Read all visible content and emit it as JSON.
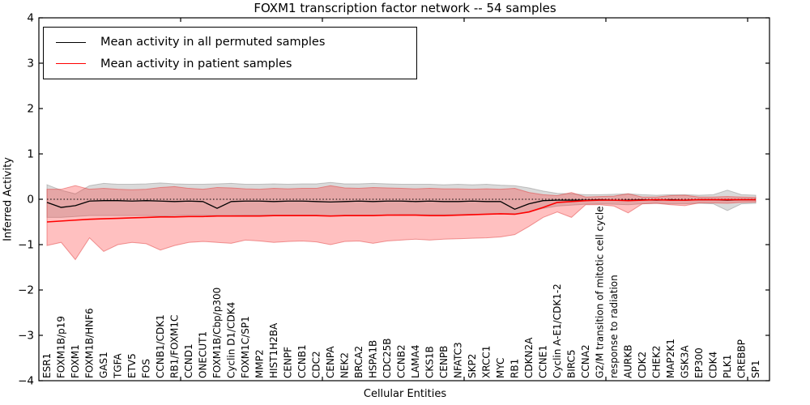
{
  "chart": {
    "title": "FOXM1 transcription factor network -- 54 samples",
    "xlabel": "Cellular Entities",
    "ylabel": "Inferred Activity",
    "y_ticks": [
      "4",
      "3",
      "2",
      "1",
      "0",
      "−1",
      "−2",
      "−3",
      "−4"
    ],
    "y_tick_values": [
      4,
      3,
      2,
      1,
      0,
      -1,
      -2,
      -3,
      -4
    ],
    "colors": {
      "permuted_line": "#000000",
      "patient_line": "#ff0000",
      "permuted_band_fill": "rgba(150,150,150,0.35)",
      "permuted_band_edge": "rgba(120,120,120,0.40)",
      "patient_band_fill": "rgba(255,45,45,0.30)",
      "patient_band_edge": "rgba(225,60,60,0.50)",
      "axis": "#000000"
    }
  },
  "legend": {
    "entries": [
      {
        "label": "Mean activity in all permuted samples",
        "color": "#000000"
      },
      {
        "label": "Mean activity in patient samples",
        "color": "#ff0000"
      }
    ]
  },
  "chart_data": {
    "type": "line",
    "title": "FOXM1 transcription factor network -- 54 samples",
    "xlabel": "Cellular Entities",
    "ylabel": "Inferred Activity",
    "ylim": [
      -4,
      4
    ],
    "grid": false,
    "legend_position": "upper left",
    "baseline": {
      "value": 0,
      "style": "dotted",
      "color": "#000000"
    },
    "categories": [
      "ESR1",
      "FOXM1B/p19",
      "FOXM1",
      "FOXM1B/HNF6",
      "GAS1",
      "TGFA",
      "ETV5",
      "FOS",
      "CCNB1/CDK1",
      "RB1/FOXM1C",
      "CCND1",
      "ONECUT1",
      "FOXM1B/Cbp/p300",
      "Cyclin D1/CDK4",
      "FOXM1C/SP1",
      "MMP2",
      "HIST1H2BA",
      "CENPF",
      "CCNB1",
      "CDC2",
      "CENPA",
      "NEK2",
      "BRCA2",
      "HSPA1B",
      "CDC25B",
      "CCNB2",
      "LAMA4",
      "CKS1B",
      "CENPB",
      "NFATC3",
      "SKP2",
      "XRCC1",
      "MYC",
      "RB1",
      "CDKN2A",
      "CCNE1",
      "Cyclin A-E1/CDK1-2",
      "BIRC5",
      "CCNA2",
      "G2/M transition of mitotic cell cycle",
      "response to radiation",
      "AURKB",
      "CDK2",
      "CHEK2",
      "MAP2K1",
      "GSK3A",
      "EP300",
      "CDK4",
      "PLK1",
      "CREBBP",
      "SP1"
    ],
    "series": [
      {
        "name": "Mean activity in all permuted samples",
        "color": "#000000",
        "values": [
          -0.07,
          -0.18,
          -0.14,
          -0.04,
          -0.03,
          -0.03,
          -0.04,
          -0.03,
          -0.04,
          -0.05,
          -0.04,
          -0.05,
          -0.2,
          -0.05,
          -0.04,
          -0.04,
          -0.05,
          -0.04,
          -0.04,
          -0.05,
          -0.06,
          -0.05,
          -0.04,
          -0.05,
          -0.04,
          -0.04,
          -0.05,
          -0.04,
          -0.05,
          -0.05,
          -0.04,
          -0.05,
          -0.05,
          -0.22,
          -0.1,
          -0.03,
          -0.02,
          -0.02,
          -0.02,
          -0.01,
          -0.02,
          -0.02,
          -0.01,
          -0.02,
          -0.01,
          -0.02,
          -0.01,
          -0.01,
          -0.02,
          -0.01,
          -0.01
        ]
      },
      {
        "name": "Mean activity in patient samples",
        "color": "#ff0000",
        "values": [
          -0.5,
          -0.48,
          -0.46,
          -0.44,
          -0.43,
          -0.42,
          -0.41,
          -0.4,
          -0.39,
          -0.39,
          -0.38,
          -0.38,
          -0.37,
          -0.37,
          -0.37,
          -0.37,
          -0.36,
          -0.36,
          -0.36,
          -0.36,
          -0.37,
          -0.36,
          -0.36,
          -0.36,
          -0.35,
          -0.35,
          -0.35,
          -0.36,
          -0.36,
          -0.35,
          -0.34,
          -0.33,
          -0.32,
          -0.33,
          -0.28,
          -0.18,
          -0.07,
          -0.05,
          -0.03,
          -0.02,
          -0.02,
          -0.03,
          -0.02,
          -0.01,
          -0.02,
          -0.02,
          -0.01,
          -0.01,
          -0.01,
          -0.01,
          -0.01
        ]
      }
    ],
    "bands": [
      {
        "name": "permuted-samples-range",
        "fill": "rgba(150,150,150,0.35)",
        "stroke": "rgba(120,120,120,0.40)",
        "upper": [
          0.32,
          0.2,
          0.12,
          0.3,
          0.35,
          0.33,
          0.33,
          0.34,
          0.36,
          0.34,
          0.33,
          0.33,
          0.34,
          0.35,
          0.33,
          0.33,
          0.34,
          0.33,
          0.34,
          0.34,
          0.37,
          0.34,
          0.34,
          0.35,
          0.34,
          0.33,
          0.33,
          0.33,
          0.32,
          0.33,
          0.32,
          0.33,
          0.31,
          0.3,
          0.25,
          0.18,
          0.13,
          0.12,
          0.1,
          0.1,
          0.11,
          0.12,
          0.1,
          0.09,
          0.1,
          0.1,
          0.09,
          0.1,
          0.2,
          0.1,
          0.09
        ],
        "lower": [
          -0.4,
          -0.4,
          -0.38,
          -0.36,
          -0.36,
          -0.36,
          -0.36,
          -0.36,
          -0.37,
          -0.36,
          -0.35,
          -0.35,
          -0.36,
          -0.36,
          -0.35,
          -0.35,
          -0.35,
          -0.35,
          -0.35,
          -0.35,
          -0.37,
          -0.35,
          -0.35,
          -0.35,
          -0.35,
          -0.34,
          -0.34,
          -0.34,
          -0.34,
          -0.34,
          -0.33,
          -0.33,
          -0.32,
          -0.32,
          -0.28,
          -0.2,
          -0.15,
          -0.13,
          -0.11,
          -0.1,
          -0.11,
          -0.12,
          -0.1,
          -0.09,
          -0.1,
          -0.1,
          -0.09,
          -0.1,
          -0.25,
          -0.1,
          -0.09
        ]
      },
      {
        "name": "patient-samples-range",
        "fill": "rgba(255,45,45,0.30)",
        "stroke": "rgba(225,60,60,0.50)",
        "upper": [
          0.22,
          0.22,
          0.3,
          0.22,
          0.24,
          0.22,
          0.21,
          0.22,
          0.26,
          0.28,
          0.24,
          0.22,
          0.26,
          0.25,
          0.23,
          0.22,
          0.24,
          0.23,
          0.24,
          0.24,
          0.3,
          0.25,
          0.24,
          0.26,
          0.25,
          0.24,
          0.23,
          0.24,
          0.23,
          0.23,
          0.22,
          0.23,
          0.22,
          0.24,
          0.15,
          0.1,
          0.08,
          0.15,
          0.05,
          0.06,
          0.07,
          0.12,
          0.05,
          0.05,
          0.08,
          0.09,
          0.05,
          0.05,
          0.06,
          0.05,
          0.04
        ],
        "lower": [
          -1.02,
          -0.95,
          -1.33,
          -0.85,
          -1.15,
          -1.0,
          -0.95,
          -0.98,
          -1.12,
          -1.02,
          -0.95,
          -0.93,
          -0.95,
          -0.97,
          -0.9,
          -0.92,
          -0.95,
          -0.93,
          -0.92,
          -0.94,
          -1.0,
          -0.93,
          -0.92,
          -0.97,
          -0.92,
          -0.9,
          -0.88,
          -0.9,
          -0.88,
          -0.87,
          -0.86,
          -0.85,
          -0.83,
          -0.78,
          -0.6,
          -0.4,
          -0.28,
          -0.4,
          -0.12,
          -0.12,
          -0.15,
          -0.3,
          -0.1,
          -0.09,
          -0.12,
          -0.14,
          -0.08,
          -0.08,
          -0.09,
          -0.07,
          -0.06
        ]
      }
    ]
  }
}
